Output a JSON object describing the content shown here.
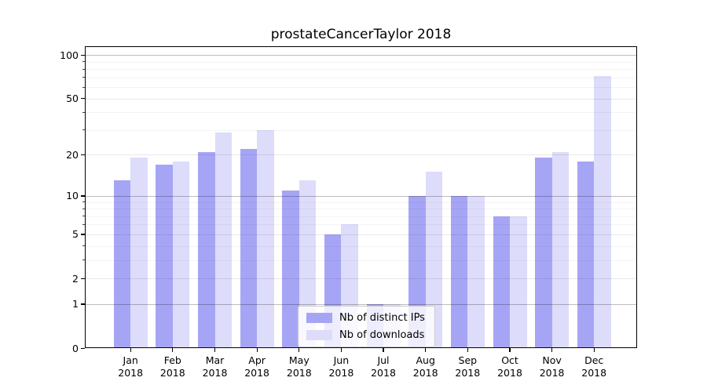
{
  "chart_data": {
    "type": "bar",
    "title": "prostateCancerTaylor 2018",
    "categories": [
      "Jan 2018",
      "Feb 2018",
      "Mar 2018",
      "Apr 2018",
      "May 2018",
      "Jun 2018",
      "Jul 2018",
      "Aug 2018",
      "Sep 2018",
      "Oct 2018",
      "Nov 2018",
      "Dec 2018"
    ],
    "series": [
      {
        "name": "Nb of distinct IPs",
        "color": "#a6a5f5",
        "values": [
          13,
          17,
          21,
          22,
          11,
          5,
          1,
          10,
          10,
          7,
          19,
          18
        ]
      },
      {
        "name": "Nb of downloads",
        "color": "#dddcfa",
        "values": [
          19,
          18,
          29,
          30,
          13,
          6,
          1,
          15,
          10,
          7,
          21,
          72
        ]
      }
    ],
    "xlabel": "",
    "ylabel": "",
    "y_scale": "log10(1+v)",
    "y_ticks": [
      0,
      1,
      2,
      5,
      10,
      20,
      50,
      100
    ],
    "y_minor_ticks": [
      3,
      4,
      6,
      7,
      8,
      9,
      30,
      40,
      60,
      70,
      80,
      90
    ],
    "ylim": [
      0,
      115
    ],
    "grid": true,
    "legend_position": "lower center"
  }
}
